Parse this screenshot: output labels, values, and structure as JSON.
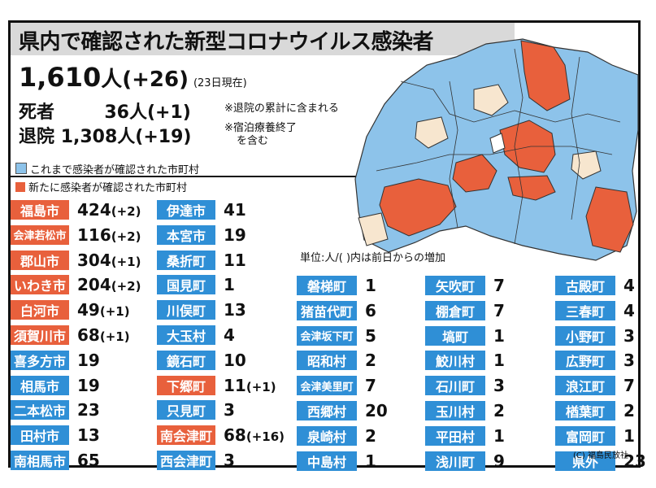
{
  "title": "県内で確認された新型コロナウイルス感染者",
  "summary": {
    "total": "1,610",
    "total_unit": "人",
    "total_increase": "(+26)",
    "as_of": "(23日現在)",
    "death_label": "死者",
    "death_value": "36人(+1)",
    "death_note": "※退院の累計に含まれる",
    "discharge_label": "退院",
    "discharge_value": "1,308人(+19)",
    "discharge_note_1": "※宿泊療養終了",
    "discharge_note_2": "を含む"
  },
  "legend": {
    "existing": "これまで感染者が確認された市町村",
    "new": "新たに感染者が確認された市町村",
    "existing_color": "#8dc3ea",
    "new_color": "#e8603c"
  },
  "unit_note": "単位:人/( )内は前日からの増加",
  "colors": {
    "red": "#e8603c",
    "blue": "#2f8fd6",
    "cream": "#f7e6cf",
    "light_blue": "#8dc3ea"
  },
  "col1": [
    {
      "name": "福島市",
      "value": "424",
      "inc": "(+2)",
      "color": "red"
    },
    {
      "name": "会津若松市",
      "value": "116",
      "inc": "(+2)",
      "color": "red"
    },
    {
      "name": "郡山市",
      "value": "304",
      "inc": "(+1)",
      "color": "red"
    },
    {
      "name": "いわき市",
      "value": "204",
      "inc": "(+2)",
      "color": "red"
    },
    {
      "name": "白河市",
      "value": "49",
      "inc": "(+1)",
      "color": "red"
    },
    {
      "name": "須賀川市",
      "value": "68",
      "inc": "(+1)",
      "color": "red"
    },
    {
      "name": "喜多方市",
      "value": "19",
      "inc": "",
      "color": "blue"
    },
    {
      "name": "相馬市",
      "value": "19",
      "inc": "",
      "color": "blue"
    },
    {
      "name": "二本松市",
      "value": "23",
      "inc": "",
      "color": "blue"
    },
    {
      "name": "田村市",
      "value": "13",
      "inc": "",
      "color": "blue"
    },
    {
      "name": "南相馬市",
      "value": "65",
      "inc": "",
      "color": "blue"
    }
  ],
  "col2": [
    {
      "name": "伊達市",
      "value": "41",
      "inc": "",
      "color": "blue"
    },
    {
      "name": "本宮市",
      "value": "19",
      "inc": "",
      "color": "blue"
    },
    {
      "name": "桑折町",
      "value": "11",
      "inc": "",
      "color": "blue"
    },
    {
      "name": "国見町",
      "value": "1",
      "inc": "",
      "color": "blue"
    },
    {
      "name": "川俣町",
      "value": "13",
      "inc": "",
      "color": "blue"
    },
    {
      "name": "大玉村",
      "value": "4",
      "inc": "",
      "color": "blue"
    },
    {
      "name": "鏡石町",
      "value": "10",
      "inc": "",
      "color": "blue"
    },
    {
      "name": "下郷町",
      "value": "11",
      "inc": "(+1)",
      "color": "red"
    },
    {
      "name": "只見町",
      "value": "3",
      "inc": "",
      "color": "blue"
    },
    {
      "name": "南会津町",
      "value": "68",
      "inc": "(+16)",
      "color": "red"
    },
    {
      "name": "西会津町",
      "value": "3",
      "inc": "",
      "color": "blue"
    }
  ],
  "col3": [
    {
      "name": "磐梯町",
      "value": "1",
      "color": "blue"
    },
    {
      "name": "猪苗代町",
      "value": "6",
      "color": "blue"
    },
    {
      "name": "会津坂下町",
      "value": "5",
      "color": "blue"
    },
    {
      "name": "昭和村",
      "value": "2",
      "color": "blue"
    },
    {
      "name": "会津美里町",
      "value": "7",
      "color": "blue"
    },
    {
      "name": "西郷村",
      "value": "20",
      "color": "blue"
    },
    {
      "name": "泉崎村",
      "value": "2",
      "color": "blue"
    },
    {
      "name": "中島村",
      "value": "1",
      "color": "blue"
    }
  ],
  "col4": [
    {
      "name": "矢吹町",
      "value": "7",
      "color": "blue"
    },
    {
      "name": "棚倉町",
      "value": "7",
      "color": "blue"
    },
    {
      "name": "塙町",
      "value": "1",
      "color": "blue"
    },
    {
      "name": "鮫川村",
      "value": "1",
      "color": "blue"
    },
    {
      "name": "石川町",
      "value": "3",
      "color": "blue"
    },
    {
      "name": "玉川村",
      "value": "2",
      "color": "blue"
    },
    {
      "name": "平田村",
      "value": "1",
      "color": "blue"
    },
    {
      "name": "浅川町",
      "value": "9",
      "color": "blue"
    }
  ],
  "col5": [
    {
      "name": "古殿町",
      "value": "4",
      "color": "blue"
    },
    {
      "name": "三春町",
      "value": "4",
      "color": "blue"
    },
    {
      "name": "小野町",
      "value": "3",
      "color": "blue"
    },
    {
      "name": "広野町",
      "value": "3",
      "color": "blue"
    },
    {
      "name": "浪江町",
      "value": "7",
      "color": "blue"
    },
    {
      "name": "楢葉町",
      "value": "2",
      "color": "blue"
    },
    {
      "name": "富岡町",
      "value": "1",
      "color": "blue"
    },
    {
      "name": "県外",
      "value": "23",
      "color": "blue"
    }
  ],
  "credit": "(C) 福島民放社"
}
